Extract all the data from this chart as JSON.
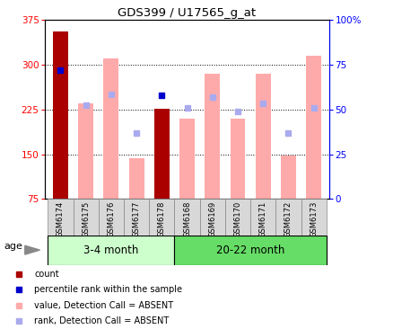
{
  "title": "GDS399 / U17565_g_at",
  "samples": [
    "GSM6174",
    "GSM6175",
    "GSM6176",
    "GSM6177",
    "GSM6178",
    "GSM6168",
    "GSM6169",
    "GSM6170",
    "GSM6171",
    "GSM6172",
    "GSM6173"
  ],
  "group1_label": "3-4 month",
  "group2_label": "20-22 month",
  "group1_color": "#ccffcc",
  "group2_color": "#66dd66",
  "group1_indices": [
    0,
    1,
    2,
    3,
    4
  ],
  "group2_indices": [
    5,
    6,
    7,
    8,
    9,
    10
  ],
  "dark_red_bars": {
    "GSM6174": 355,
    "GSM6178": 226
  },
  "pink_bars": {
    "GSM6175": 235,
    "GSM6176": 310,
    "GSM6177": 143,
    "GSM6168": 210,
    "GSM6169": 285,
    "GSM6170": 210,
    "GSM6171": 285,
    "GSM6172": 148,
    "GSM6173": 315
  },
  "blue_dots": {
    "GSM6174": 290,
    "GSM6178": 248
  },
  "light_blue_dots": {
    "GSM6175": 232,
    "GSM6176": 250,
    "GSM6177": 185,
    "GSM6168": 228,
    "GSM6169": 245,
    "GSM6170": 222,
    "GSM6171": 235,
    "GSM6172": 185,
    "GSM6173": 228
  },
  "ylim": [
    75,
    375
  ],
  "yticks": [
    75,
    150,
    225,
    300,
    375
  ],
  "y2lim": [
    0,
    100
  ],
  "y2ticks": [
    0,
    25,
    50,
    75,
    100
  ],
  "y2ticklabels": [
    "0",
    "25",
    "50",
    "75",
    "100%"
  ],
  "bar_width": 0.6,
  "dark_red_color": "#aa0000",
  "pink_color": "#ffaaaa",
  "blue_color": "#0000cc",
  "light_blue_color": "#aaaaee",
  "age_label": "age",
  "legend_items": [
    {
      "color": "#aa0000",
      "label": "count"
    },
    {
      "color": "#0000cc",
      "label": "percentile rank within the sample"
    },
    {
      "color": "#ffaaaa",
      "label": "value, Detection Call = ABSENT"
    },
    {
      "color": "#aaaaee",
      "label": "rank, Detection Call = ABSENT"
    }
  ]
}
